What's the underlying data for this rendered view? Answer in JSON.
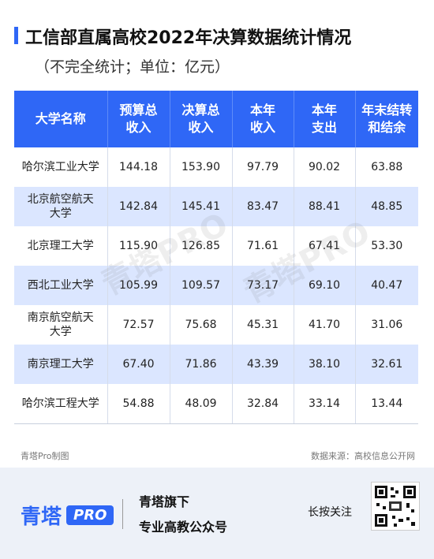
{
  "title": "工信部直属高校2022年决算数据统计情况",
  "subtitle": "（不完全统计；单位：亿元）",
  "table": {
    "headers": [
      "大学名称",
      "预算总\n收入",
      "决算总\n收入",
      "本年\n收入",
      "本年\n支出",
      "年末结转\n和结余"
    ],
    "rows": [
      [
        "哈尔滨工业大学",
        "144.18",
        "153.90",
        "97.79",
        "90.02",
        "63.88"
      ],
      [
        "北京航空航天\n大学",
        "142.84",
        "145.41",
        "83.47",
        "88.41",
        "48.85"
      ],
      [
        "北京理工大学",
        "115.90",
        "126.85",
        "71.61",
        "67.41",
        "53.30"
      ],
      [
        "西北工业大学",
        "105.99",
        "109.57",
        "73.17",
        "69.10",
        "40.47"
      ],
      [
        "南京航空航天\n大学",
        "72.57",
        "75.68",
        "45.31",
        "41.70",
        "31.06"
      ],
      [
        "南京理工大学",
        "67.40",
        "71.86",
        "43.39",
        "38.10",
        "32.61"
      ],
      [
        "哈尔滨工程大学",
        "54.88",
        "48.09",
        "32.84",
        "33.14",
        "13.44"
      ]
    ]
  },
  "watermark": "青塔PRO",
  "footnote": {
    "left": "青塔Pro制图",
    "right": "数据来源：高校信息公开网"
  },
  "footer": {
    "brand_cn": "青塔",
    "brand_pro": "PRO",
    "slogan_line1": "青塔旗下",
    "slogan_line2": "专业高教公众号",
    "press_text": "长按关注"
  },
  "colors": {
    "accent": "#2f67f6",
    "alt_row": "#dbe6ff",
    "footer_bg": "#edf1f8"
  }
}
